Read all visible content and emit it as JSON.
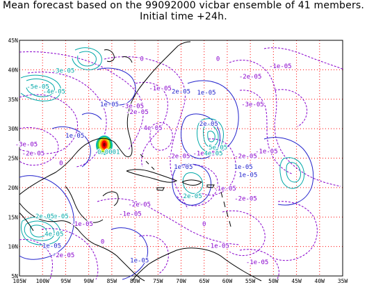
{
  "title": {
    "line1": "Mean forecast based on the 99092000 vicbar ensemble of 41 members.",
    "line2": "Initial time +24h."
  },
  "axes": {
    "lat_ticks": [
      "45N",
      "40N",
      "35N",
      "30N",
      "25N",
      "20N",
      "15N",
      "10N",
      "5N"
    ],
    "lon_ticks": [
      "105W",
      "100W",
      "95W",
      "90W",
      "85W",
      "80W",
      "75W",
      "70W",
      "65W",
      "60W",
      "55W",
      "50W",
      "45W",
      "40W",
      "35W"
    ]
  },
  "colors": {
    "grid": "#ff0000",
    "coast": "#000000",
    "contour_purple": "#8800cc",
    "contour_blue": "#2222cc",
    "contour_cyan": "#00a8a8",
    "label_purple": "#8800cc",
    "label_cyan": "#00a8a8"
  },
  "contour_labels": [
    {
      "text": "0",
      "color": "purple",
      "lon": -78.5,
      "lat": 41.5
    },
    {
      "text": "0",
      "color": "purple",
      "lon": -62.0,
      "lat": 41.5
    },
    {
      "text": "-1e-05",
      "color": "purple",
      "lon": -48.5,
      "lat": 40.3
    },
    {
      "text": "-3e-05",
      "color": "cyan",
      "lon": -95.5,
      "lat": 39.5
    },
    {
      "text": "-2e-05",
      "color": "purple",
      "lon": -55.0,
      "lat": 38.5
    },
    {
      "text": "-5e-05",
      "color": "cyan",
      "lon": -101.0,
      "lat": 36.8
    },
    {
      "text": "-4e-05",
      "color": "cyan",
      "lon": -97.5,
      "lat": 36.0
    },
    {
      "text": "-1e-05",
      "color": "purple",
      "lon": -74.5,
      "lat": 36.5
    },
    {
      "text": "2e-05",
      "color": "blue",
      "lon": -70.0,
      "lat": 36.0
    },
    {
      "text": "1e-05",
      "color": "blue",
      "lon": -64.5,
      "lat": 35.8
    },
    {
      "text": "1e-05",
      "color": "blue",
      "lon": -85.5,
      "lat": 33.8
    },
    {
      "text": "-3e-05",
      "color": "purple",
      "lon": -80.5,
      "lat": 33.5
    },
    {
      "text": "-2e-05",
      "color": "purple",
      "lon": -79.5,
      "lat": 32.5
    },
    {
      "text": "-3e-05",
      "color": "purple",
      "lon": -54.5,
      "lat": 33.8
    },
    {
      "text": "-4e-05",
      "color": "purple",
      "lon": -76.5,
      "lat": 29.8
    },
    {
      "text": "2e-05",
      "color": "blue",
      "lon": -64.0,
      "lat": 30.5
    },
    {
      "text": "1e-05",
      "color": "blue",
      "lon": -93.0,
      "lat": 28.5
    },
    {
      "text": "-3e-05",
      "color": "purple",
      "lon": -103.5,
      "lat": 27.0
    },
    {
      "text": "-2e-05",
      "color": "purple",
      "lon": -102.0,
      "lat": 25.5
    },
    {
      "text": "-2e-05",
      "color": "purple",
      "lon": -70.5,
      "lat": 25.0
    },
    {
      "text": "-1e-05",
      "color": "purple",
      "lon": -65.0,
      "lat": 25.5
    },
    {
      "text": "-2e-05",
      "color": "purple",
      "lon": -56.0,
      "lat": 25.0
    },
    {
      "text": "-1e-05",
      "color": "purple",
      "lon": -51.5,
      "lat": 25.8
    },
    {
      "text": "0",
      "color": "purple",
      "lon": -96.0,
      "lat": 23.8
    },
    {
      "text": "0.0001",
      "color": "cyan",
      "lon": -85.7,
      "lat": 25.7
    },
    {
      "text": "1e-05",
      "color": "blue",
      "lon": -69.5,
      "lat": 23.2
    },
    {
      "text": "1e-05",
      "color": "blue",
      "lon": -56.5,
      "lat": 23.2
    },
    {
      "text": "1e-05",
      "color": "blue",
      "lon": -55.5,
      "lat": 21.8
    },
    {
      "text": "2e-05",
      "color": "cyan",
      "lon": -67.5,
      "lat": 18.2
    },
    {
      "text": "-1e-05",
      "color": "purple",
      "lon": -60.5,
      "lat": 19.5
    },
    {
      "text": "-2e-05",
      "color": "purple",
      "lon": -56.0,
      "lat": 17.8
    },
    {
      "text": "-2e-05",
      "color": "purple",
      "lon": -79.0,
      "lat": 16.8
    },
    {
      "text": "-1e-05",
      "color": "purple",
      "lon": -81.0,
      "lat": 15.2
    },
    {
      "text": "-3e-05",
      "color": "cyan",
      "lon": -96.8,
      "lat": 14.8
    },
    {
      "text": "2e-05",
      "color": "cyan",
      "lon": -99.5,
      "lat": 14.8
    },
    {
      "text": "-1e-05",
      "color": "purple",
      "lon": -91.5,
      "lat": 13.5
    },
    {
      "text": "4e-05",
      "color": "cyan",
      "lon": -97.5,
      "lat": 11.8
    },
    {
      "text": "1e-05",
      "color": "blue",
      "lon": -98.0,
      "lat": 9.8
    },
    {
      "text": "-2e-05",
      "color": "purple",
      "lon": -95.5,
      "lat": 8.2
    },
    {
      "text": "0",
      "color": "purple",
      "lon": -87.0,
      "lat": 10.5
    },
    {
      "text": "-1e-05",
      "color": "purple",
      "lon": -62.0,
      "lat": 9.8
    },
    {
      "text": "0",
      "color": "purple",
      "lon": -65.0,
      "lat": 13.5
    },
    {
      "text": "1e-05",
      "color": "blue",
      "lon": -79.0,
      "lat": 7.3
    },
    {
      "text": "-1e-05",
      "color": "purple",
      "lon": -53.5,
      "lat": 7.0
    },
    {
      "text": "5e-05",
      "color": "cyan",
      "lon": -62.0,
      "lat": 26.5
    },
    {
      "text": "4e-05",
      "color": "cyan",
      "lon": -63.0,
      "lat": 25.5
    }
  ]
}
